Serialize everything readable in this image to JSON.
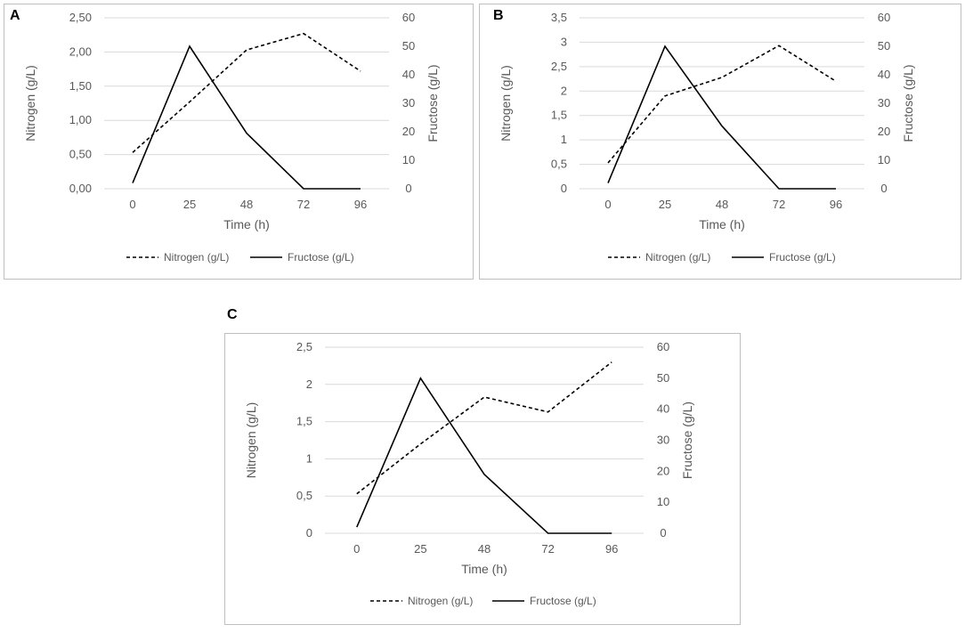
{
  "figure": {
    "panel_labels": [
      "A",
      "B",
      "C"
    ]
  },
  "chart_data": [
    {
      "panel": "A",
      "type": "line",
      "title": "",
      "categories": [
        "0",
        "25",
        "48",
        "72",
        "96"
      ],
      "xlabel": "Time (h)",
      "ylabel": "Nitrogen (g/L)",
      "y2label": "Fructose (g/L)",
      "ylim": [
        0,
        2.5
      ],
      "y_ticks": [
        "0,00",
        "0,50",
        "1,00",
        "1,50",
        "2,00",
        "2,50"
      ],
      "y2lim": [
        0,
        60
      ],
      "y2_ticks": [
        "0",
        "10",
        "20",
        "30",
        "40",
        "50",
        "60"
      ],
      "grid": true,
      "legend": "bottom",
      "series": [
        {
          "name": "Nitrogen (g/L)",
          "axis": "left",
          "style": "dashed",
          "values": [
            0.53,
            1.27,
            2.03,
            2.27,
            1.72
          ]
        },
        {
          "name": "Fructose (g/L)",
          "axis": "right",
          "style": "solid",
          "values": [
            2,
            50,
            19.5,
            0,
            0
          ]
        }
      ]
    },
    {
      "panel": "B",
      "type": "line",
      "title": "",
      "categories": [
        "0",
        "25",
        "48",
        "72",
        "96"
      ],
      "xlabel": "Time (h)",
      "ylabel": "Nitrogen (g/L)",
      "y2label": "Fructose (g/L)",
      "ylim": [
        0,
        3.5
      ],
      "y_ticks": [
        "0",
        "0,5",
        "1",
        "1,5",
        "2",
        "2,5",
        "3",
        "3,5"
      ],
      "y2lim": [
        0,
        60
      ],
      "y2_ticks": [
        "0",
        "10",
        "20",
        "30",
        "40",
        "50",
        "60"
      ],
      "grid": true,
      "legend": "bottom",
      "series": [
        {
          "name": "Nitrogen (g/L)",
          "axis": "left",
          "style": "dashed",
          "values": [
            0.53,
            1.9,
            2.28,
            2.93,
            2.2
          ]
        },
        {
          "name": "Fructose (g/L)",
          "axis": "right",
          "style": "solid",
          "values": [
            2,
            50,
            22,
            0,
            0
          ]
        }
      ]
    },
    {
      "panel": "C",
      "type": "line",
      "title": "",
      "categories": [
        "0",
        "25",
        "48",
        "72",
        "96"
      ],
      "xlabel": "Time (h)",
      "ylabel": "Nitrogen (g/L)",
      "y2label": "Fructose (g/L)",
      "ylim": [
        0,
        2.5
      ],
      "y_ticks": [
        "0",
        "0,5",
        "1",
        "1,5",
        "2",
        "2,5"
      ],
      "y2lim": [
        0,
        60
      ],
      "y2_ticks": [
        "0",
        "10",
        "20",
        "30",
        "40",
        "50",
        "60"
      ],
      "grid": true,
      "legend": "bottom",
      "series": [
        {
          "name": "Nitrogen (g/L)",
          "axis": "left",
          "style": "dashed",
          "values": [
            0.53,
            1.2,
            1.83,
            1.63,
            2.3
          ]
        },
        {
          "name": "Fructose (g/L)",
          "axis": "right",
          "style": "solid",
          "values": [
            2,
            50,
            19,
            0,
            0
          ]
        }
      ]
    }
  ]
}
